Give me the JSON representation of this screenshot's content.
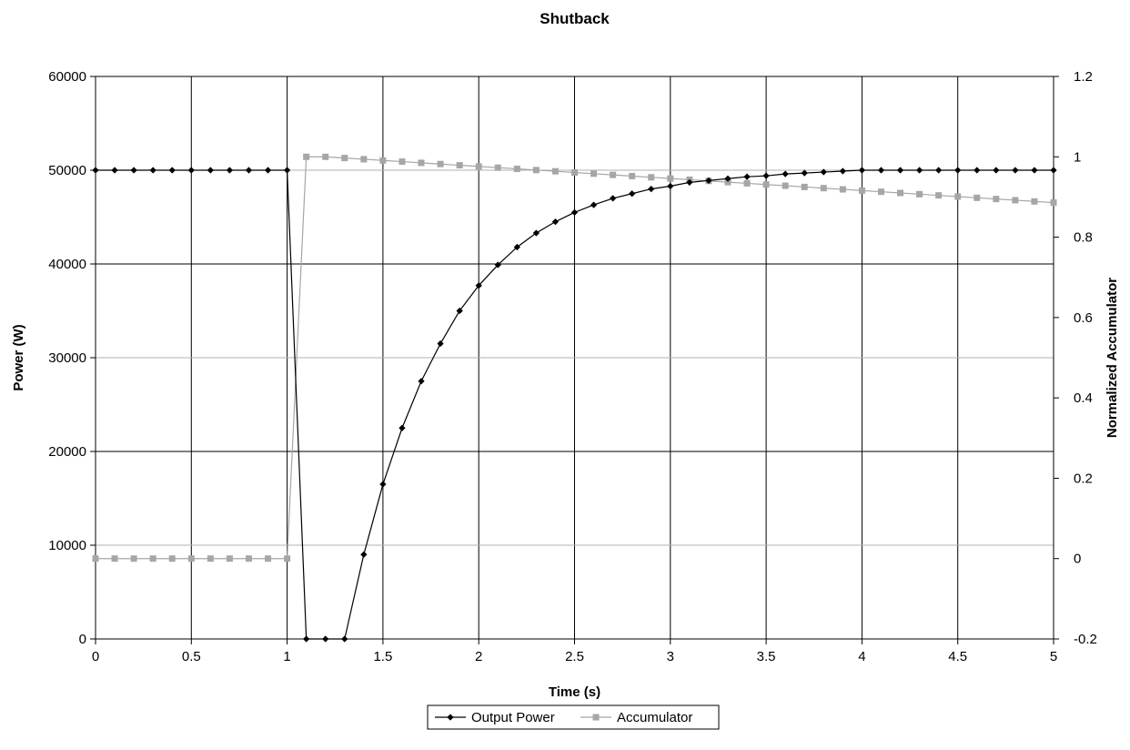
{
  "chart_data": {
    "type": "line",
    "title": "Shutback",
    "xlabel": "Time (s)",
    "ylabel": "Power (W)",
    "y2label": "Normalized Accumulator",
    "xlim": [
      0,
      5
    ],
    "ylim": [
      0,
      60000
    ],
    "y2lim": [
      -0.2,
      1.2
    ],
    "x_ticks": [
      "0",
      "0.5",
      "1",
      "1.5",
      "2",
      "2.5",
      "3",
      "3.5",
      "4",
      "4.5",
      "5"
    ],
    "y_ticks": [
      "0",
      "10000",
      "20000",
      "30000",
      "40000",
      "50000",
      "60000"
    ],
    "y2_ticks": [
      "-0.2",
      "0",
      "0.2",
      "0.4",
      "0.6",
      "0.8",
      "1",
      "1.2"
    ],
    "grid": true,
    "legend_position": "bottom-center",
    "x": [
      0,
      0.1,
      0.2,
      0.3,
      0.4,
      0.5,
      0.6,
      0.7,
      0.8,
      0.9,
      1.0,
      1.1,
      1.2,
      1.3,
      1.4,
      1.5,
      1.6,
      1.7,
      1.8,
      1.9,
      2.0,
      2.1,
      2.2,
      2.3,
      2.4,
      2.5,
      2.6,
      2.7,
      2.8,
      2.9,
      3.0,
      3.1,
      3.2,
      3.3,
      3.4,
      3.5,
      3.6,
      3.7,
      3.8,
      3.9,
      4.0,
      4.1,
      4.2,
      4.3,
      4.4,
      4.5,
      4.6,
      4.7,
      4.8,
      4.9,
      5.0
    ],
    "series": [
      {
        "name": "Output Power",
        "axis": "left",
        "color": "#000000",
        "marker": "diamond",
        "values": [
          50000,
          50000,
          50000,
          50000,
          50000,
          50000,
          50000,
          50000,
          50000,
          50000,
          50000,
          0,
          0,
          0,
          9000,
          16500,
          22500,
          27500,
          31500,
          35000,
          37700,
          39900,
          41800,
          43300,
          44500,
          45500,
          46300,
          47000,
          47500,
          48000,
          48300,
          48700,
          48900,
          49100,
          49300,
          49400,
          49600,
          49700,
          49800,
          49900,
          50000,
          50000,
          50000,
          50000,
          50000,
          50000,
          50000,
          50000,
          50000,
          50000,
          50000
        ]
      },
      {
        "name": "Accumulator",
        "axis": "right",
        "color": "#a6a6a6",
        "marker": "square",
        "values": [
          0,
          0,
          0,
          0,
          0,
          0,
          0,
          0,
          0,
          0,
          0,
          1.0,
          1.0,
          0.997,
          0.994,
          0.991,
          0.988,
          0.985,
          0.982,
          0.979,
          0.976,
          0.973,
          0.97,
          0.967,
          0.964,
          0.961,
          0.958,
          0.955,
          0.952,
          0.949,
          0.946,
          0.943,
          0.94,
          0.937,
          0.934,
          0.931,
          0.928,
          0.925,
          0.922,
          0.919,
          0.916,
          0.913,
          0.91,
          0.907,
          0.904,
          0.901,
          0.898,
          0.895,
          0.892,
          0.889,
          0.886
        ]
      }
    ]
  }
}
